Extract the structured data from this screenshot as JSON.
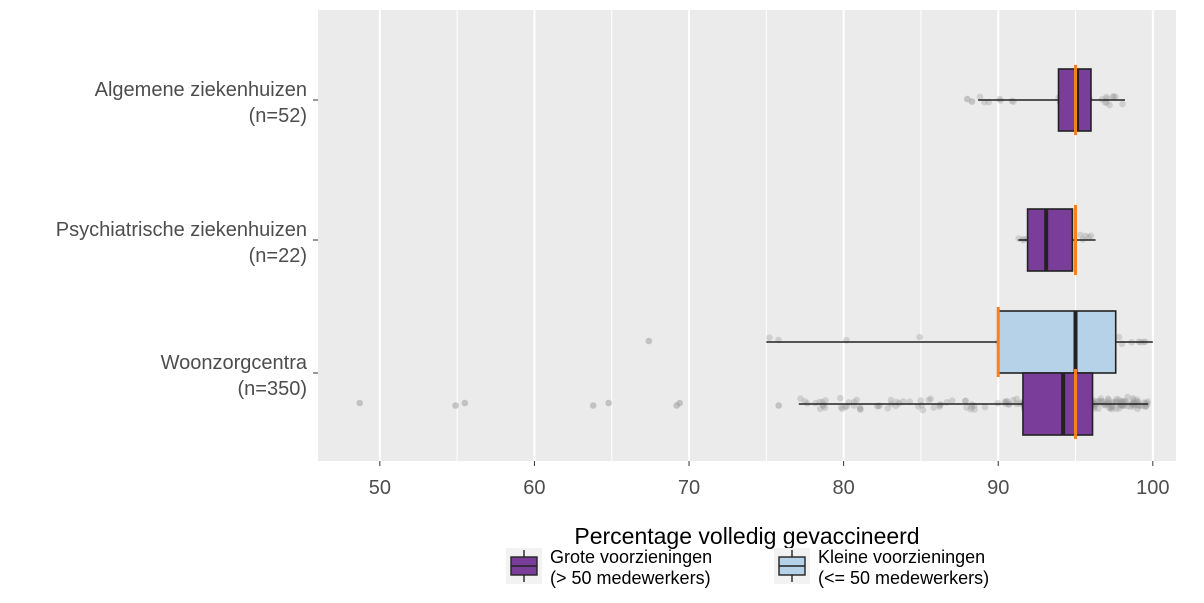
{
  "chart_data": {
    "type": "boxplot",
    "title": "",
    "xlabel": "Percentage volledig gevaccineerd",
    "ylabel": "",
    "xlim": [
      46,
      101.5
    ],
    "xticks": [
      "50",
      "60",
      "70",
      "80",
      "90",
      "100"
    ],
    "grid": true,
    "legend_position": "bottom",
    "colors": {
      "panel": "#ebebeb",
      "grid": "#ffffff",
      "reference_line": "#f5821f",
      "points": "#9a9a9a"
    },
    "categories": [
      {
        "label": "Algemene ziekenhuizen",
        "n_label": "(n=52)"
      },
      {
        "label": "Psychiatrische ziekenhuizen",
        "n_label": "(n=22)"
      },
      {
        "label": "Woonzorgcentra",
        "n_label": "(n=350)"
      }
    ],
    "series": [
      {
        "name": "Grote voorzieningen",
        "name_line2": "(> 50 medewerkers)",
        "color": "#7a3d9a"
      },
      {
        "name": "Kleine voorzieningen",
        "name_line2": "(<= 50 medewerkers)",
        "color": "#b6d2e8"
      }
    ],
    "boxes": [
      {
        "category": 0,
        "series": 0,
        "whisker_low": 88.7,
        "q1": 93.9,
        "median": 95.1,
        "q3": 96.0,
        "whisker_high": 98.2,
        "reference": 95.0
      },
      {
        "category": 1,
        "series": 0,
        "whisker_low": 91.3,
        "q1": 91.9,
        "median": 93.1,
        "q3": 94.8,
        "whisker_high": 96.3,
        "reference": 95.0
      },
      {
        "category": 2,
        "series": 1,
        "whisker_low": 75.0,
        "q1": 90.0,
        "median": 95.0,
        "q3": 97.6,
        "whisker_high": 100.0,
        "reference": 90.0
      },
      {
        "category": 2,
        "series": 0,
        "whisker_low": 77.1,
        "q1": 91.6,
        "median": 94.2,
        "q3": 96.1,
        "whisker_high": 99.7,
        "reference": 95.0
      }
    ],
    "outliers": [
      {
        "category": 0,
        "series": 0,
        "values": [
          88.0,
          88.3
        ]
      },
      {
        "category": 2,
        "series": 1,
        "values": [
          67.4
        ]
      },
      {
        "category": 2,
        "series": 0,
        "values": [
          48.7,
          54.9,
          55.5,
          63.8,
          64.8,
          69.2,
          69.4,
          75.8
        ]
      }
    ]
  }
}
